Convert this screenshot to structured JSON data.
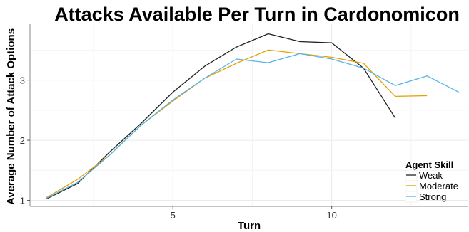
{
  "chart_data": {
    "type": "line",
    "title": "Attacks Available Per Turn in Cardonomicon",
    "xlabel": "Turn",
    "ylabel": "Average Number of Attack Options",
    "xlim": [
      0.5,
      14.3
    ],
    "ylim": [
      0.9,
      3.93
    ],
    "x_ticks": [
      5,
      10
    ],
    "y_ticks": [
      1,
      2,
      3
    ],
    "grid": true,
    "legend": {
      "title": "Agent Skill",
      "position": "bottom-right"
    },
    "series": [
      {
        "name": "Weak",
        "color": "#222222",
        "x": [
          1,
          2,
          3,
          4,
          5,
          6,
          7,
          8,
          9,
          10,
          11,
          12
        ],
        "y": [
          1.02,
          1.28,
          1.8,
          2.28,
          2.8,
          3.23,
          3.55,
          3.77,
          3.64,
          3.62,
          3.2,
          2.37
        ]
      },
      {
        "name": "Moderate",
        "color": "#e69f00",
        "x": [
          1,
          2,
          3,
          4,
          5,
          6,
          7,
          8,
          9,
          10,
          11,
          12,
          13
        ],
        "y": [
          1.04,
          1.35,
          1.75,
          2.25,
          2.65,
          3.03,
          3.28,
          3.5,
          3.44,
          3.38,
          3.28,
          2.73,
          2.74
        ]
      },
      {
        "name": "Strong",
        "color": "#56b4e9",
        "x": [
          1,
          2,
          3,
          4,
          5,
          6,
          7,
          8,
          9,
          10,
          11,
          12,
          13,
          14
        ],
        "y": [
          1.03,
          1.3,
          1.75,
          2.25,
          2.67,
          3.03,
          3.35,
          3.29,
          3.44,
          3.35,
          3.2,
          2.91,
          3.07,
          2.8
        ]
      }
    ]
  }
}
